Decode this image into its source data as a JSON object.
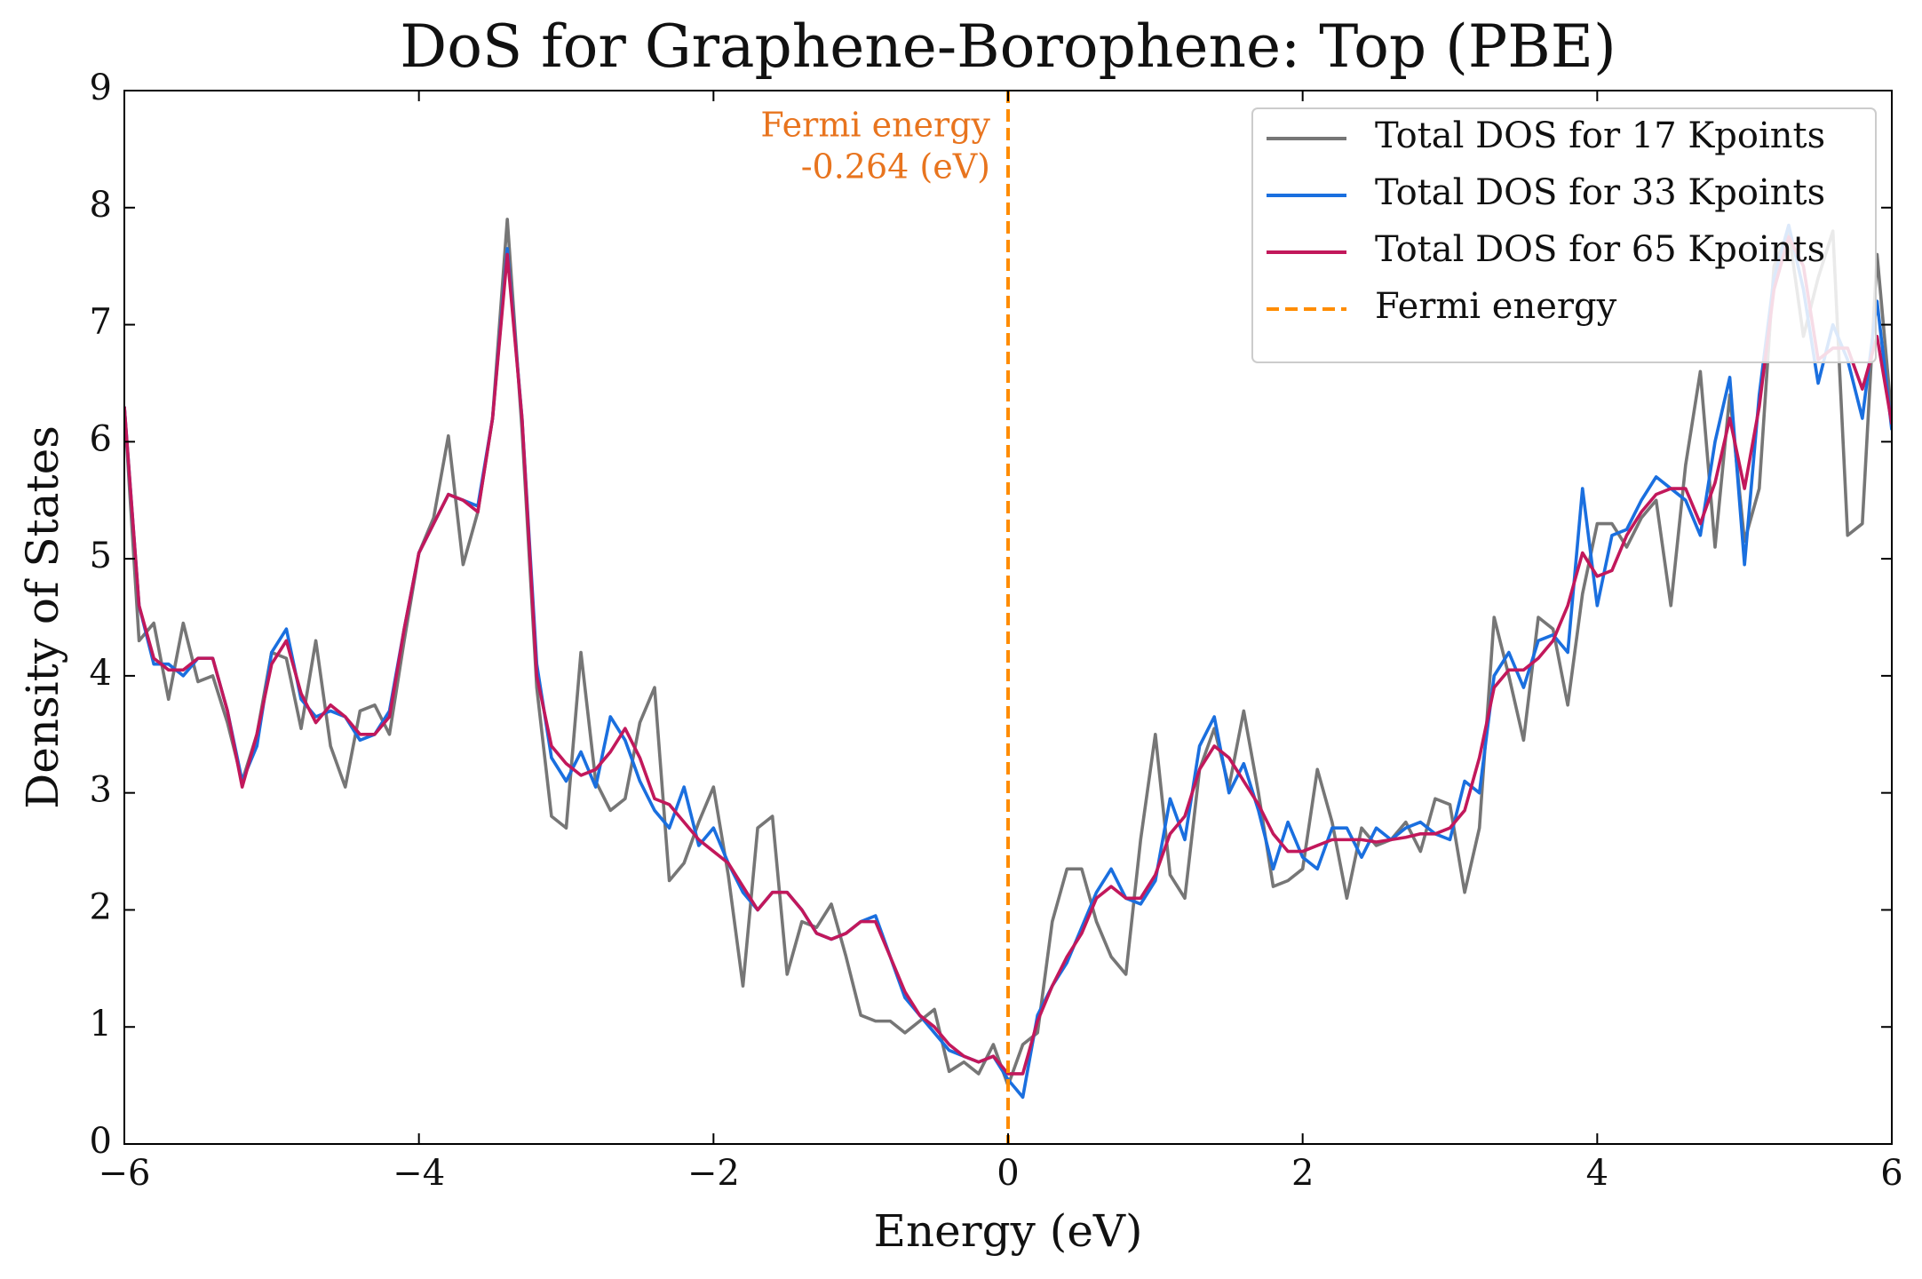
{
  "chart_data": {
    "type": "line",
    "title": "DoS for Graphene-Borophene: Top (PBE)",
    "xlabel": "Energy (eV)",
    "ylabel": "Density of States",
    "xlim": [
      -6,
      6
    ],
    "ylim": [
      0,
      9
    ],
    "xticks": [
      {
        "value": -6,
        "label": "−6"
      },
      {
        "value": -4,
        "label": "−4"
      },
      {
        "value": -2,
        "label": "−2"
      },
      0,
      2,
      4,
      6
    ],
    "yticks": [
      0,
      1,
      2,
      3,
      4,
      5,
      6,
      7,
      8,
      9
    ],
    "legend": "upper right",
    "x": [
      -6,
      -5.9,
      -5.8,
      -5.7,
      -5.6,
      -5.5,
      -5.4,
      -5.3,
      -5.2,
      -5.1,
      -5,
      -4.9,
      -4.8,
      -4.7,
      -4.6,
      -4.5,
      -4.4,
      -4.3,
      -4.2,
      -4.1,
      -4,
      -3.9,
      -3.8,
      -3.7,
      -3.6,
      -3.5,
      -3.4,
      -3.3,
      -3.2,
      -3.1,
      -3,
      -2.9,
      -2.8,
      -2.7,
      -2.6,
      -2.5,
      -2.4,
      -2.3,
      -2.2,
      -2.1,
      -2,
      -1.9,
      -1.8,
      -1.7,
      -1.6,
      -1.5,
      -1.4,
      -1.3,
      -1.2,
      -1.1,
      -1,
      -0.9,
      -0.8,
      -0.7,
      -0.6,
      -0.5,
      -0.4,
      -0.3,
      -0.2,
      -0.1,
      0,
      0.1,
      0.2,
      0.3,
      0.4,
      0.5,
      0.6,
      0.7,
      0.8,
      0.9,
      1,
      1.1,
      1.2,
      1.3,
      1.4,
      1.5,
      1.6,
      1.7,
      1.8,
      1.9,
      2,
      2.1,
      2.2,
      2.3,
      2.4,
      2.5,
      2.6,
      2.7,
      2.8,
      2.9,
      3,
      3.1,
      3.2,
      3.3,
      3.4,
      3.5,
      3.6,
      3.7,
      3.8,
      3.9,
      4,
      4.1,
      4.2,
      4.3,
      4.4,
      4.5,
      4.6,
      4.7,
      4.8,
      4.9,
      5,
      5.1,
      5.2,
      5.3,
      5.4,
      5.5,
      5.6,
      5.7,
      5.8,
      5.9,
      6
    ],
    "series": [
      {
        "name": "Total DOS for 17 Kpoints",
        "color": "#767676",
        "values": [
          6.3,
          4.3,
          4.45,
          3.8,
          4.45,
          3.95,
          4.0,
          3.6,
          3.1,
          3.5,
          4.2,
          4.15,
          3.55,
          4.3,
          3.4,
          3.05,
          3.7,
          3.75,
          3.5,
          4.3,
          5.05,
          5.35,
          6.05,
          4.95,
          5.4,
          6.2,
          7.9,
          6.1,
          3.9,
          2.8,
          2.7,
          4.2,
          3.1,
          2.85,
          2.95,
          3.6,
          3.9,
          2.25,
          2.4,
          2.75,
          3.05,
          2.3,
          1.35,
          2.7,
          2.8,
          1.45,
          1.9,
          1.85,
          2.05,
          1.6,
          1.1,
          1.05,
          1.05,
          0.95,
          1.05,
          1.15,
          0.62,
          0.7,
          0.6,
          0.85,
          0.5,
          0.85,
          0.95,
          1.9,
          2.35,
          2.35,
          1.9,
          1.6,
          1.45,
          2.6,
          3.5,
          2.3,
          2.1,
          3.2,
          3.55,
          3.05,
          3.7,
          3.0,
          2.2,
          2.25,
          2.35,
          3.2,
          2.75,
          2.1,
          2.7,
          2.55,
          2.6,
          2.75,
          2.5,
          2.95,
          2.9,
          2.15,
          2.7,
          4.5,
          4.0,
          3.45,
          4.5,
          4.4,
          3.75,
          4.7,
          5.3,
          5.3,
          5.1,
          5.35,
          5.5,
          4.6,
          5.8,
          6.6,
          5.1,
          6.4,
          5.15,
          5.6,
          7.5,
          7.8,
          6.9,
          7.4,
          7.8,
          5.2,
          5.3,
          7.6,
          6.2
        ]
      },
      {
        "name": "Total DOS for 33 Kpoints",
        "color": "#1a6fdf",
        "values": [
          6.3,
          4.6,
          4.1,
          4.1,
          4.0,
          4.15,
          4.15,
          3.7,
          3.1,
          3.4,
          4.2,
          4.4,
          3.8,
          3.65,
          3.7,
          3.65,
          3.45,
          3.5,
          3.7,
          4.4,
          5.05,
          5.3,
          5.55,
          5.5,
          5.45,
          6.2,
          7.65,
          6.2,
          4.1,
          3.3,
          3.1,
          3.35,
          3.05,
          3.65,
          3.45,
          3.1,
          2.85,
          2.7,
          3.05,
          2.55,
          2.7,
          2.4,
          2.15,
          2.0,
          2.15,
          2.15,
          2.0,
          1.8,
          1.75,
          1.8,
          1.9,
          1.95,
          1.6,
          1.25,
          1.1,
          0.95,
          0.8,
          0.75,
          0.7,
          0.75,
          0.55,
          0.4,
          1.1,
          1.35,
          1.55,
          1.85,
          2.15,
          2.35,
          2.1,
          2.05,
          2.25,
          2.95,
          2.6,
          3.4,
          3.65,
          3.0,
          3.25,
          2.85,
          2.35,
          2.75,
          2.45,
          2.35,
          2.7,
          2.7,
          2.45,
          2.7,
          2.6,
          2.7,
          2.75,
          2.65,
          2.6,
          3.1,
          3.0,
          4.0,
          4.2,
          3.9,
          4.3,
          4.35,
          4.2,
          5.6,
          4.6,
          5.2,
          5.25,
          5.5,
          5.7,
          5.6,
          5.5,
          5.2,
          6.0,
          6.55,
          4.95,
          6.4,
          7.4,
          7.85,
          7.3,
          6.5,
          7.0,
          6.7,
          6.2,
          7.2,
          6.1
        ]
      },
      {
        "name": "Total DOS for 65 Kpoints",
        "color": "#c2185b",
        "values": [
          6.3,
          4.6,
          4.15,
          4.05,
          4.05,
          4.15,
          4.15,
          3.7,
          3.05,
          3.5,
          4.1,
          4.3,
          3.85,
          3.6,
          3.75,
          3.65,
          3.5,
          3.5,
          3.65,
          4.4,
          5.05,
          5.3,
          5.55,
          5.5,
          5.4,
          6.2,
          7.6,
          6.2,
          4.0,
          3.4,
          3.25,
          3.15,
          3.2,
          3.35,
          3.55,
          3.3,
          2.95,
          2.9,
          2.75,
          2.6,
          2.5,
          2.4,
          2.2,
          2.0,
          2.15,
          2.15,
          2.0,
          1.8,
          1.75,
          1.8,
          1.9,
          1.9,
          1.6,
          1.3,
          1.1,
          1.0,
          0.85,
          0.75,
          0.7,
          0.75,
          0.6,
          0.6,
          1.05,
          1.35,
          1.6,
          1.8,
          2.1,
          2.2,
          2.1,
          2.1,
          2.3,
          2.65,
          2.8,
          3.2,
          3.4,
          3.3,
          3.1,
          2.9,
          2.65,
          2.5,
          2.5,
          2.55,
          2.6,
          2.6,
          2.6,
          2.58,
          2.6,
          2.62,
          2.65,
          2.65,
          2.7,
          2.85,
          3.3,
          3.9,
          4.05,
          4.05,
          4.15,
          4.3,
          4.6,
          5.05,
          4.85,
          4.9,
          5.2,
          5.4,
          5.55,
          5.6,
          5.6,
          5.3,
          5.65,
          6.2,
          5.6,
          6.3,
          7.3,
          7.75,
          7.5,
          6.7,
          6.8,
          6.8,
          6.45,
          6.9,
          6.15
        ]
      }
    ],
    "vlines": [
      {
        "x": 0,
        "name": "Fermi energy",
        "color": "#ff8c00"
      }
    ],
    "annotation": [
      "Fermi energy",
      "-0.264 (eV)"
    ],
    "annotation_color": "#e8741e"
  }
}
